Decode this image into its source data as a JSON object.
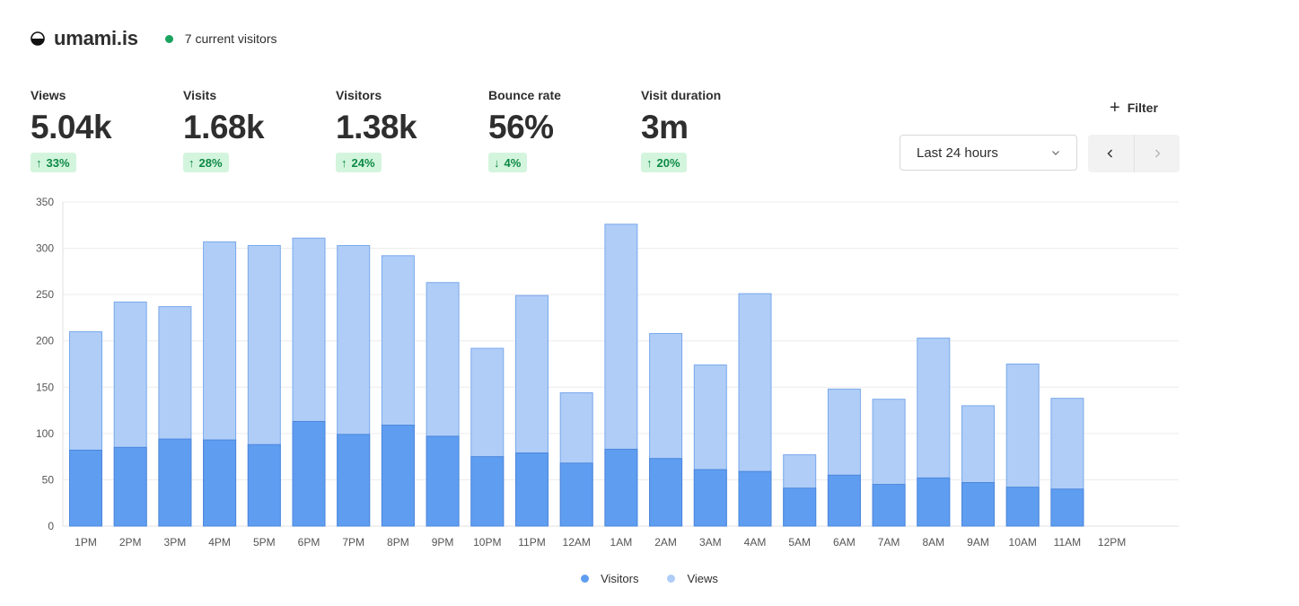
{
  "header": {
    "site_name": "umami.is",
    "current_visitors": "7 current visitors",
    "live_color": "#1aa35f"
  },
  "metrics": [
    {
      "label": "Views",
      "value": "5.04k",
      "change": "33%",
      "direction": "up"
    },
    {
      "label": "Visits",
      "value": "1.68k",
      "change": "28%",
      "direction": "up"
    },
    {
      "label": "Visitors",
      "value": "1.38k",
      "change": "24%",
      "direction": "up"
    },
    {
      "label": "Bounce rate",
      "value": "56%",
      "change": "4%",
      "direction": "down"
    },
    {
      "label": "Visit duration",
      "value": "3m",
      "change": "20%",
      "direction": "up"
    }
  ],
  "filter": {
    "label": "Filter"
  },
  "date_range": {
    "selected": "Last 24 hours"
  },
  "nav": {
    "prev_icon": "chevron-left-icon",
    "next_icon": "chevron-right-icon",
    "next_disabled": true
  },
  "colors": {
    "visitors": "#5f9df0",
    "views": "#afcdf7",
    "views_border": "#7aa9ec",
    "visitors_border": "#4a86dc"
  },
  "chart_data": {
    "type": "bar",
    "stacked": "overlay",
    "categories": [
      "1PM",
      "2PM",
      "3PM",
      "4PM",
      "5PM",
      "6PM",
      "7PM",
      "8PM",
      "9PM",
      "10PM",
      "11PM",
      "12AM",
      "1AM",
      "2AM",
      "3AM",
      "4AM",
      "5AM",
      "6AM",
      "7AM",
      "8AM",
      "9AM",
      "10AM",
      "11AM",
      "12PM"
    ],
    "series": [
      {
        "name": "Visitors",
        "values": [
          82,
          85,
          94,
          93,
          88,
          113,
          99,
          109,
          97,
          75,
          79,
          68,
          83,
          73,
          61,
          59,
          41,
          55,
          45,
          52,
          47,
          42,
          40,
          null
        ]
      },
      {
        "name": "Views",
        "values": [
          210,
          242,
          237,
          307,
          303,
          311,
          303,
          292,
          263,
          192,
          249,
          144,
          326,
          208,
          174,
          251,
          77,
          148,
          137,
          203,
          130,
          175,
          138,
          null
        ]
      }
    ],
    "yticks": [
      0,
      50,
      100,
      150,
      200,
      250,
      300,
      350
    ],
    "ylim": [
      0,
      350
    ],
    "grid": true,
    "legend": "bottom-center"
  }
}
